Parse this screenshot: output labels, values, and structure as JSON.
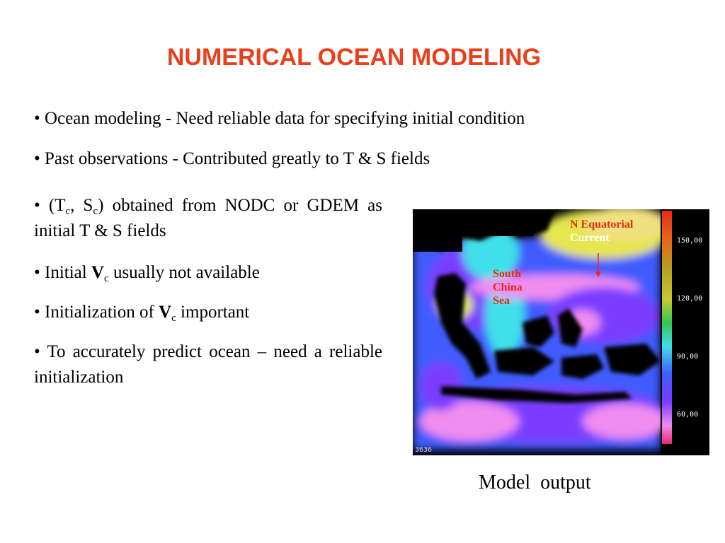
{
  "title": "NUMERICAL OCEAN MODELING",
  "bullets": {
    "b1": "• Ocean modeling -  Need reliable data for specifying  initial condition",
    "b2": "• Past observations - Contributed greatly to T & S fields",
    "b3_open": "• (T",
    "b3_sub1": "c",
    "b3_mid": ",  S",
    "b3_sub2": "c",
    "b3_rest": ") obtained from NODC or GDEM as initial T & S fields",
    "b4_pre": "• Initial ",
    "b4_v": "V",
    "b4_sub": "c",
    "b4_rest": " usually not available",
    "b5_pre": "• Initialization of  ",
    "b5_v": "V",
    "b5_sub": "c",
    "b5_rest": "  important",
    "b6": "• To accurately predict ocean – need a reliable initialization"
  },
  "map": {
    "label_nec_line1": "N Equatorial",
    "label_nec_line2": "Current",
    "label_scs_line1": "South",
    "label_scs_line2": "China",
    "label_scs_line3": "Sea",
    "scale_ticks": [
      "150,00",
      "120,00",
      "90,00",
      "60,00"
    ],
    "stamp": "3636",
    "colors": {
      "land_black": "#000000",
      "deep_purple": "#7a3cff",
      "blue": "#3f5cff",
      "cyan": "#3fe0e8",
      "yellow": "#e6e650",
      "pink": "#f08cf0",
      "red": "#e82a14"
    }
  },
  "caption": "Model  output"
}
